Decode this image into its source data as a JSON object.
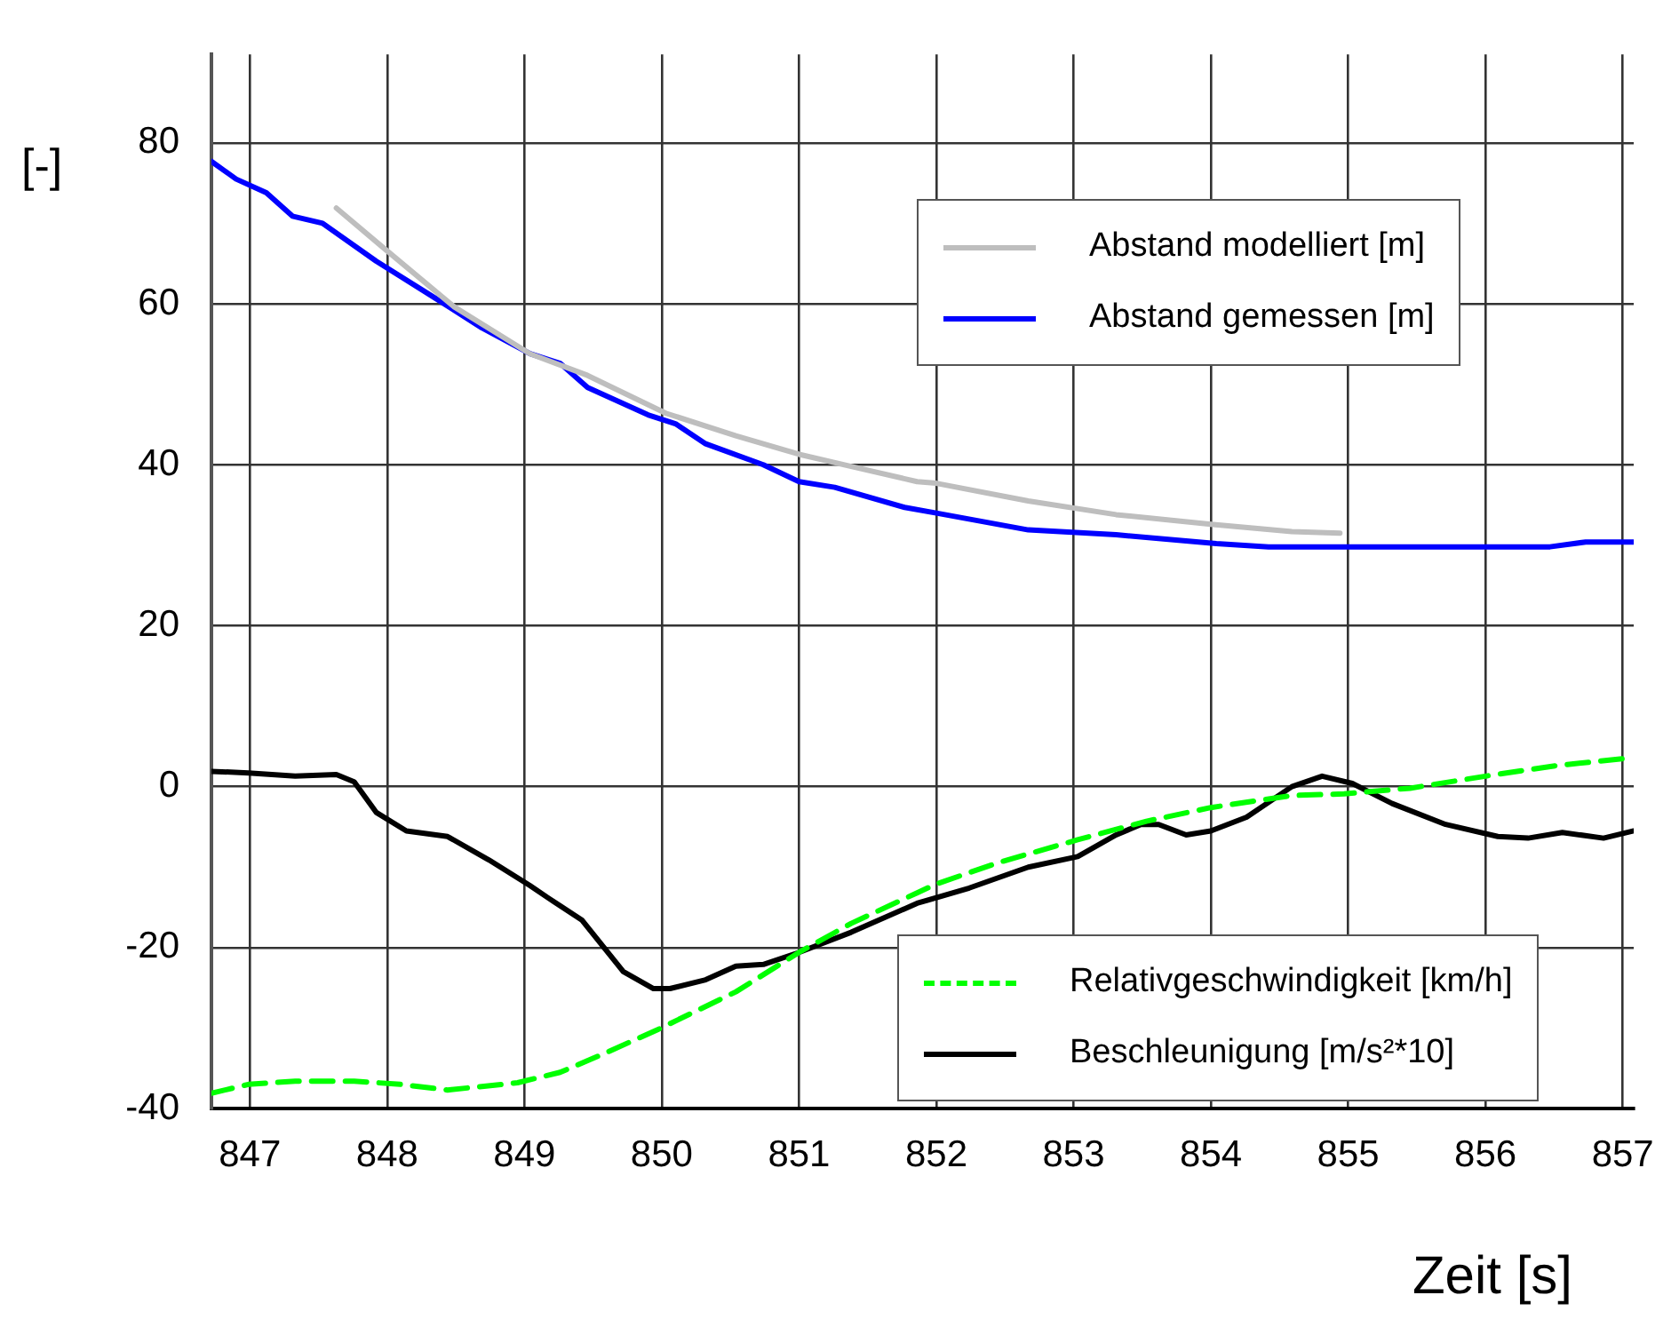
{
  "chart_data": {
    "type": "line",
    "xlabel": "Zeit [s]",
    "ylabel": "[-]",
    "xlim": [
      846.72,
      857.08
    ],
    "xticks": [
      847,
      848,
      849,
      850,
      851,
      852,
      853,
      854,
      855,
      856,
      857
    ],
    "ylim": [
      -40,
      91
    ],
    "yticks": [
      -40,
      -20,
      0,
      20,
      40,
      60,
      80
    ],
    "grid": true,
    "legend": "right",
    "marker": "none",
    "series": [
      {
        "name": "Abstand modelliert [m]",
        "color": "#bebebe",
        "line_style": "solid",
        "x": [
          847.63,
          847.97,
          848.49,
          849.04,
          849.46,
          850.03,
          850.54,
          851.0,
          851.38,
          851.86,
          852.0,
          852.67,
          853.31,
          854.0,
          854.59,
          854.94
        ],
        "values": [
          71.9,
          67.0,
          59.6,
          53.8,
          51.1,
          46.4,
          43.6,
          41.3,
          39.8,
          37.9,
          37.7,
          35.5,
          33.8,
          32.6,
          31.7,
          31.5
        ]
      },
      {
        "name": "Abstand gemessen [m]",
        "color": "#0000ff",
        "line_style": "solid",
        "x": [
          846.72,
          846.9,
          847.12,
          847.31,
          847.53,
          847.92,
          848.36,
          848.69,
          849.04,
          849.26,
          849.46,
          849.9,
          850.1,
          850.32,
          850.74,
          851.0,
          851.26,
          851.77,
          852.0,
          852.67,
          853.31,
          854.04,
          854.42,
          856.47,
          856.73,
          857.08
        ],
        "values": [
          77.7,
          75.5,
          73.8,
          70.9,
          70.0,
          65.3,
          60.6,
          57.0,
          53.8,
          52.6,
          49.6,
          46.2,
          45.1,
          42.6,
          40.0,
          37.9,
          37.2,
          34.7,
          34.0,
          31.9,
          31.3,
          30.2,
          29.8,
          29.8,
          30.4,
          30.4
        ]
      },
      {
        "name": "Relativgeschwindigkeit [km/h]",
        "color": "#00ff00",
        "line_style": "dashed",
        "x": [
          846.72,
          846.99,
          847.33,
          847.76,
          848.1,
          848.44,
          848.95,
          849.26,
          849.55,
          849.97,
          850.54,
          851.0,
          851.38,
          851.86,
          852.0,
          852.46,
          853.03,
          853.53,
          854.0,
          854.59,
          854.97,
          855.45,
          856.0,
          856.51,
          857.08
        ],
        "values": [
          -38.1,
          -37.0,
          -36.6,
          -36.6,
          -37.0,
          -37.7,
          -36.8,
          -35.5,
          -33.4,
          -30.2,
          -25.5,
          -20.6,
          -17.0,
          -13.2,
          -12.1,
          -9.4,
          -6.6,
          -4.3,
          -2.6,
          -1.1,
          -0.9,
          -0.2,
          1.3,
          2.6,
          3.6
        ]
      },
      {
        "name": "Beschleunigung [m/s²*10]",
        "color": "#000000",
        "line_style": "solid",
        "x": [
          846.72,
          846.99,
          847.33,
          847.63,
          847.76,
          847.92,
          848.14,
          848.44,
          848.74,
          849.04,
          849.17,
          849.42,
          849.72,
          849.94,
          850.06,
          850.32,
          850.54,
          850.74,
          851.0,
          851.38,
          851.86,
          852.24,
          852.67,
          853.03,
          853.31,
          853.49,
          853.62,
          853.82,
          854.0,
          854.26,
          854.59,
          854.81,
          855.03,
          855.32,
          855.71,
          856.09,
          856.31,
          856.56,
          856.86,
          857.08
        ],
        "values": [
          1.9,
          1.7,
          1.3,
          1.5,
          0.6,
          -3.2,
          -5.5,
          -6.2,
          -9.1,
          -12.3,
          -13.8,
          -16.6,
          -23.0,
          -25.1,
          -25.1,
          -24.0,
          -22.3,
          -22.1,
          -20.6,
          -18.1,
          -14.5,
          -12.6,
          -10.0,
          -8.7,
          -6.0,
          -4.7,
          -4.7,
          -6.0,
          -5.5,
          -3.8,
          0.0,
          1.3,
          0.4,
          -2.1,
          -4.7,
          -6.2,
          -6.4,
          -5.7,
          -6.4,
          -5.5
        ]
      }
    ]
  }
}
